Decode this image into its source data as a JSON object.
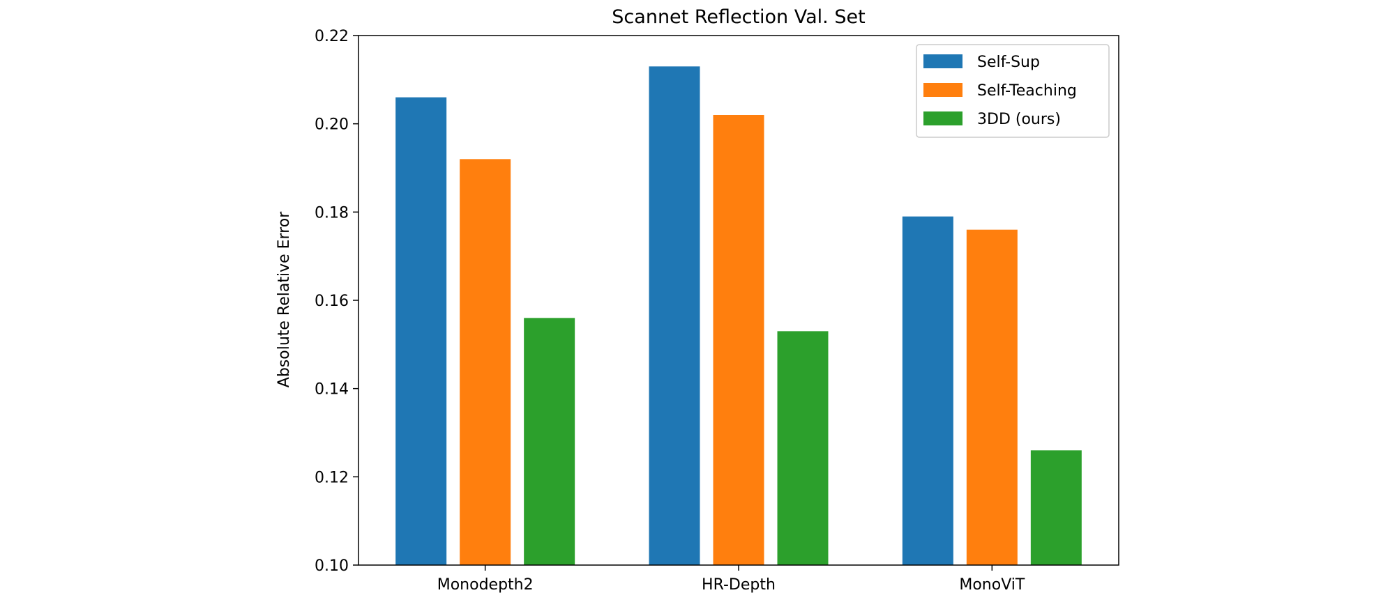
{
  "chart_data": {
    "type": "bar",
    "title": "Scannet Reflection Val. Set",
    "xlabel": "",
    "ylabel": "Absolute Relative Error",
    "categories": [
      "Monodepth2",
      "HR-Depth",
      "MonoViT"
    ],
    "series": [
      {
        "name": "Self-Sup",
        "color": "#1f77b4",
        "values": [
          0.206,
          0.213,
          0.179
        ]
      },
      {
        "name": "Self-Teaching",
        "color": "#ff7f0e",
        "values": [
          0.192,
          0.202,
          0.176
        ]
      },
      {
        "name": "3DD (ours)",
        "color": "#2ca02c",
        "values": [
          0.156,
          0.153,
          0.126
        ]
      }
    ],
    "ylim": [
      0.1,
      0.22
    ],
    "yticks": [
      "0.10",
      "0.12",
      "0.14",
      "0.16",
      "0.18",
      "0.20",
      "0.22"
    ],
    "grid": false,
    "legend_position": "top-right"
  }
}
